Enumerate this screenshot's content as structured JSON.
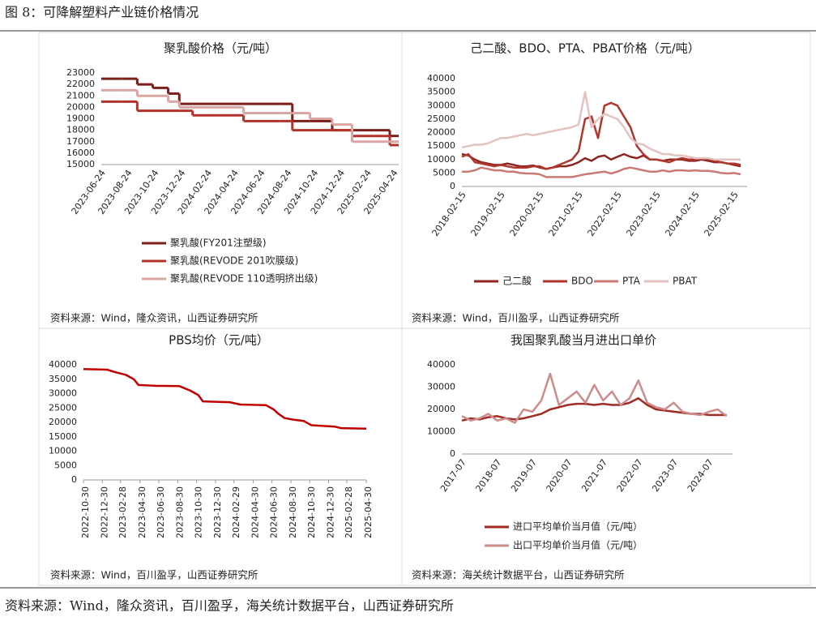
{
  "header": {
    "title": "图 8：可降解塑料产业链价格情况"
  },
  "footer": {
    "source": "资料来源：Wind，隆众资讯，百川盈孚，海关统计数据平台，山西证券研究所"
  },
  "chart_data": [
    {
      "type": "line",
      "step": true,
      "title": "聚乳酸价格（元/吨）",
      "source": "资料来源：Wind，隆众资讯，山西证券研究所",
      "legend": "bottom",
      "x": [
        "2023-06-24",
        "2023-08-10",
        "2023-09-15",
        "2023-10-20",
        "2023-11-25",
        "2023-12-20",
        "2024-01-20",
        "2024-03-10",
        "2024-05-15",
        "2024-08-05",
        "2024-09-05",
        "2024-10-15",
        "2024-12-05",
        "2025-01-20",
        "2025-03-10",
        "2025-04-15"
      ],
      "xlim": [
        "2023-06-24",
        "2025-05-05"
      ],
      "xticks": [
        "2023-06-24",
        "2023-08-24",
        "2023-10-24",
        "2023-12-24",
        "2024-02-24",
        "2024-04-24",
        "2024-06-24",
        "2024-08-24",
        "2024-10-24",
        "2024-12-24",
        "2025-02-24",
        "2025-04-24"
      ],
      "ylim": [
        15000,
        23000
      ],
      "yticks": [
        15000,
        16000,
        17000,
        18000,
        19000,
        20000,
        21000,
        22000,
        23000
      ],
      "series": [
        {
          "name": "聚乳酸(FY201注塑级)",
          "color": "#7b1f1a",
          "values": [
            22500,
            22500,
            22000,
            21700,
            21200,
            20300,
            20300,
            20300,
            20300,
            20300,
            18800,
            18800,
            18000,
            18000,
            18000,
            17500
          ]
        },
        {
          "name": "聚乳酸(REVODE 201吹膜级)",
          "color": "#b3332a",
          "values": [
            20500,
            20500,
            19700,
            19700,
            19700,
            19700,
            19300,
            19300,
            18800,
            18800,
            18000,
            18000,
            18000,
            17500,
            17500,
            16700
          ]
        },
        {
          "name": "聚乳酸(REVODE 110透明挤出级)",
          "color": "#d9a6a3",
          "values": [
            21500,
            21500,
            21000,
            21000,
            20500,
            20000,
            20000,
            20000,
            19500,
            19500,
            19500,
            19000,
            18500,
            17000,
            17000,
            17000
          ]
        }
      ]
    },
    {
      "type": "line",
      "title": "己二酸、BDO、PTA、PBAT价格（元/吨）",
      "source": "资料来源：Wind，百川盈孚，山西证券研究所",
      "legend": "bottom",
      "x": [
        "2018-02-15",
        "2018-04-15",
        "2018-06-15",
        "2018-08-15",
        "2018-10-15",
        "2018-12-15",
        "2019-02-15",
        "2019-04-15",
        "2019-06-15",
        "2019-08-15",
        "2019-10-15",
        "2019-12-15",
        "2020-02-15",
        "2020-04-15",
        "2020-06-15",
        "2020-08-15",
        "2020-10-15",
        "2020-12-15",
        "2021-02-15",
        "2021-04-15",
        "2021-06-15",
        "2021-08-15",
        "2021-10-15",
        "2021-12-15",
        "2022-02-15",
        "2022-04-15",
        "2022-06-15",
        "2022-08-15",
        "2022-10-15",
        "2022-12-15",
        "2023-02-15",
        "2023-04-15",
        "2023-06-15",
        "2023-08-15",
        "2023-10-15",
        "2023-12-15",
        "2024-02-15",
        "2024-04-15",
        "2024-06-15",
        "2024-08-15",
        "2024-10-15",
        "2024-12-15",
        "2025-02-15",
        "2025-04-15"
      ],
      "xlim": [
        "2018-02-15",
        "2025-06-15"
      ],
      "xticks": [
        "2018-02-15",
        "2019-02-15",
        "2020-02-15",
        "2021-02-15",
        "2022-02-15",
        "2023-02-15",
        "2024-02-15",
        "2025-02-15"
      ],
      "ylim": [
        0,
        40000
      ],
      "yticks": [
        0,
        5000,
        10000,
        15000,
        20000,
        25000,
        30000,
        35000,
        40000
      ],
      "series": [
        {
          "name": "己二酸",
          "color": "#8b2620",
          "values": [
            12000,
            11500,
            10000,
            9000,
            8500,
            8000,
            8000,
            8500,
            8000,
            7500,
            7500,
            7800,
            7000,
            6500,
            7000,
            7500,
            7500,
            8000,
            9000,
            10500,
            9500,
            11000,
            11500,
            10000,
            11000,
            12000,
            11000,
            10500,
            11500,
            10000,
            10000,
            9500,
            10000,
            10000,
            10000,
            9500,
            9500,
            10000,
            9500,
            9000,
            9000,
            8500,
            8000,
            7500
          ]
        },
        {
          "name": "BDO",
          "color": "#b0362c",
          "values": [
            11000,
            12000,
            9000,
            8500,
            8000,
            7500,
            8000,
            7500,
            7000,
            7000,
            7000,
            7500,
            7500,
            6500,
            7000,
            8000,
            9000,
            10000,
            13000,
            25000,
            26000,
            18000,
            30000,
            31000,
            30000,
            26000,
            22000,
            15000,
            12000,
            10000,
            10000,
            9500,
            9000,
            10000,
            10500,
            10000,
            10000,
            10500,
            10000,
            9500,
            9000,
            8500,
            8500,
            8000
          ]
        },
        {
          "name": "PTA",
          "color": "#c97a74",
          "values": [
            5500,
            5500,
            6000,
            7000,
            6500,
            6000,
            6000,
            5500,
            5500,
            5000,
            4800,
            4800,
            4500,
            3500,
            3500,
            3500,
            3500,
            3500,
            4000,
            4500,
            4800,
            5200,
            5500,
            4800,
            5500,
            6500,
            7000,
            6500,
            6000,
            5500,
            5500,
            6000,
            5500,
            6000,
            6000,
            5800,
            6000,
            5800,
            5800,
            5500,
            5000,
            4800,
            5000,
            4500
          ]
        },
        {
          "name": "PBAT",
          "color": "#e3c2c0",
          "values": [
            14500,
            15000,
            15500,
            15500,
            16000,
            17000,
            18000,
            18000,
            18500,
            19000,
            19500,
            19000,
            19500,
            20000,
            20500,
            21000,
            21500,
            22000,
            23000,
            35000,
            22000,
            25000,
            27000,
            26000,
            25000,
            22000,
            18000,
            16000,
            15500,
            14000,
            13000,
            12000,
            12000,
            11500,
            11500,
            11000,
            10500,
            10500,
            10500,
            10000,
            10000,
            10000,
            10000,
            10000
          ]
        }
      ]
    },
    {
      "type": "line",
      "title": "PBS均价（元/吨）",
      "source": "资料来源：Wind，百川盈孚，山西证券研究所",
      "x": [
        "2022-10-30",
        "2023-01-15",
        "2023-02-10",
        "2023-03-15",
        "2023-04-10",
        "2023-04-25",
        "2023-06-20",
        "2023-09-05",
        "2023-10-10",
        "2023-11-05",
        "2023-11-20",
        "2024-02-15",
        "2024-03-20",
        "2024-06-10",
        "2024-07-05",
        "2024-07-20",
        "2024-08-10",
        "2024-09-05",
        "2024-10-10",
        "2024-11-05",
        "2025-01-20",
        "2025-02-10",
        "2025-04-30"
      ],
      "xlim": [
        "2022-10-30",
        "2025-04-30"
      ],
      "xticks": [
        "2022-10-30",
        "2022-12-30",
        "2023-02-28",
        "2023-04-30",
        "2023-06-30",
        "2023-08-30",
        "2023-10-30",
        "2023-12-30",
        "2024-02-29",
        "2024-04-30",
        "2024-06-30",
        "2024-08-30",
        "2024-10-30",
        "2024-12-30",
        "2025-02-28",
        "2025-04-30"
      ],
      "ylim": [
        0,
        40000
      ],
      "yticks": [
        0,
        5000,
        10000,
        15000,
        20000,
        25000,
        30000,
        35000,
        40000
      ],
      "color": "#c00000",
      "values": [
        38500,
        38300,
        37500,
        36500,
        35000,
        33000,
        32700,
        32600,
        31000,
        29500,
        27300,
        27000,
        26200,
        26000,
        24500,
        23000,
        21500,
        21000,
        20500,
        19000,
        18500,
        18000,
        17800
      ]
    },
    {
      "type": "line",
      "title": "我国聚乳酸当月进出口单价",
      "source": "资料来源：海关统计数据平台，山西证券研究所",
      "legend": "bottom",
      "x": [
        "2017-07",
        "2017-10",
        "2018-01",
        "2018-04",
        "2018-07",
        "2018-10",
        "2019-01",
        "2019-04",
        "2019-07",
        "2019-10",
        "2020-01",
        "2020-04",
        "2020-07",
        "2020-10",
        "2021-01",
        "2021-04",
        "2021-07",
        "2021-10",
        "2022-01",
        "2022-04",
        "2022-07",
        "2022-10",
        "2023-01",
        "2023-04",
        "2023-07",
        "2023-10",
        "2024-01",
        "2024-04",
        "2024-07",
        "2024-10",
        "2025-01"
      ],
      "xlim": [
        "2017-07",
        "2025-03"
      ],
      "xticks": [
        "2017-07",
        "2018-07",
        "2019-07",
        "2020-07",
        "2021-07",
        "2022-07",
        "2023-07",
        "2024-07"
      ],
      "ylim": [
        0,
        40000
      ],
      "yticks": [
        0,
        10000,
        20000,
        30000,
        40000
      ],
      "series": [
        {
          "name": "进口平均单价当月值（元/吨）",
          "color": "#a02b22",
          "values": [
            15000,
            16000,
            15500,
            16500,
            17000,
            16000,
            15500,
            16000,
            17000,
            18000,
            20000,
            21000,
            22000,
            22500,
            22500,
            22000,
            22500,
            22000,
            22000,
            23000,
            25000,
            22000,
            20000,
            19500,
            19000,
            18500,
            18000,
            18000,
            17500,
            17500,
            17500
          ]
        },
        {
          "name": "出口平均单价当月值（元/吨）",
          "color": "#cc8c8a",
          "values": [
            17000,
            15000,
            16000,
            18000,
            15000,
            16000,
            14000,
            20000,
            19000,
            24000,
            36000,
            22000,
            25000,
            28000,
            23000,
            31000,
            24000,
            28000,
            22000,
            25000,
            33000,
            23000,
            21000,
            20000,
            23000,
            19000,
            18000,
            17500,
            19000,
            20000,
            17000
          ]
        }
      ]
    }
  ]
}
